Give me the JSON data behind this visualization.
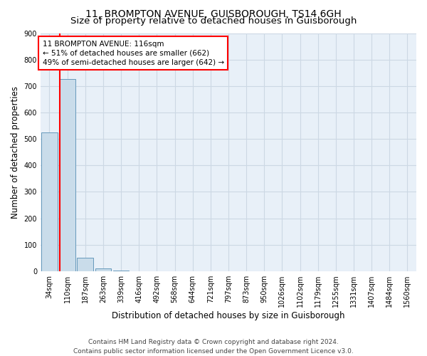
{
  "title": "11, BROMPTON AVENUE, GUISBOROUGH, TS14 6GH",
  "subtitle": "Size of property relative to detached houses in Guisborough",
  "xlabel": "Distribution of detached houses by size in Guisborough",
  "ylabel": "Number of detached properties",
  "footer_line1": "Contains HM Land Registry data © Crown copyright and database right 2024.",
  "footer_line2": "Contains public sector information licensed under the Open Government Licence v3.0.",
  "bin_labels": [
    "34sqm",
    "110sqm",
    "187sqm",
    "263sqm",
    "339sqm",
    "416sqm",
    "492sqm",
    "568sqm",
    "644sqm",
    "721sqm",
    "797sqm",
    "873sqm",
    "950sqm",
    "1026sqm",
    "1102sqm",
    "1179sqm",
    "1255sqm",
    "1331sqm",
    "1407sqm",
    "1484sqm",
    "1560sqm"
  ],
  "bar_heights": [
    525,
    727,
    50,
    10,
    2,
    0,
    0,
    0,
    0,
    0,
    0,
    0,
    0,
    0,
    0,
    0,
    0,
    0,
    0,
    0,
    0
  ],
  "bar_color": "#c9dcea",
  "bar_edge_color": "#6699bb",
  "annotation_text": "11 BROMPTON AVENUE: 116sqm\n← 51% of detached houses are smaller (662)\n49% of semi-detached houses are larger (642) →",
  "annotation_box_color": "white",
  "annotation_box_edge_color": "red",
  "red_line_color": "red",
  "ylim": [
    0,
    900
  ],
  "yticks": [
    0,
    100,
    200,
    300,
    400,
    500,
    600,
    700,
    800,
    900
  ],
  "grid_color": "#ccd8e4",
  "background_color": "#e8f0f8",
  "title_fontsize": 10,
  "subtitle_fontsize": 9.5,
  "axis_label_fontsize": 8.5,
  "tick_fontsize": 7,
  "annotation_fontsize": 7.5,
  "footer_fontsize": 6.5
}
